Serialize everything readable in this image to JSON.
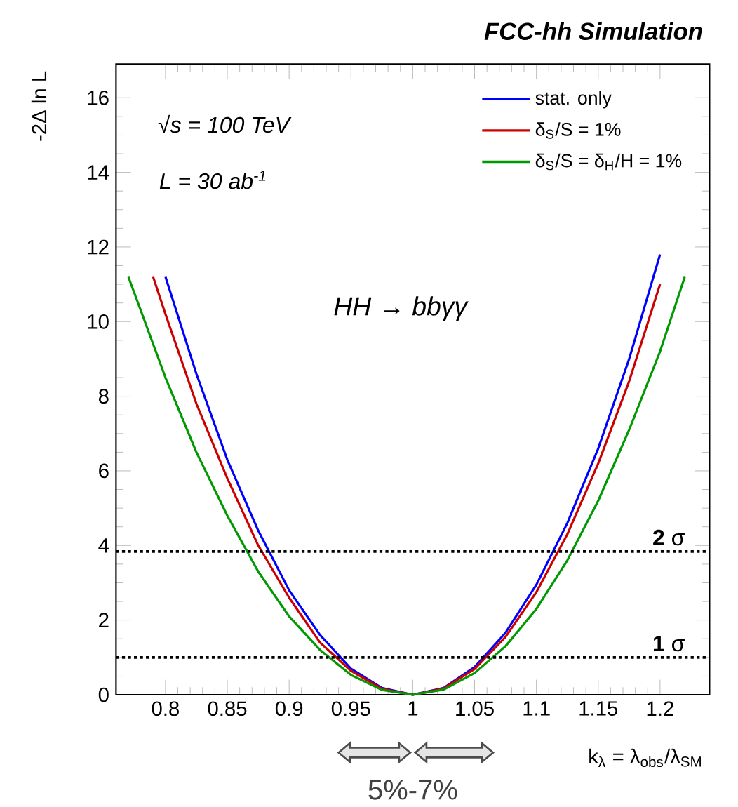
{
  "chart_data": {
    "type": "line",
    "title": "FCC-hh Simulation",
    "xlabel": "k$_{λ}$ = λ$_{obs}$/λ$_{SM}$",
    "ylabel": "-2Δ ln L",
    "xlim": [
      0.76,
      1.24
    ],
    "ylim": [
      0,
      16.9
    ],
    "xticks": [
      0.8,
      0.85,
      0.9,
      0.95,
      1,
      1.05,
      1.1,
      1.15,
      1.2
    ],
    "yticks": [
      0,
      2,
      4,
      6,
      8,
      10,
      12,
      14,
      16
    ],
    "legend": "top right",
    "line_style": "solid",
    "series": [
      {
        "name": "stat. only",
        "color": "#0000ff",
        "x": [
          0.8,
          0.825,
          0.85,
          0.875,
          0.9,
          0.925,
          0.95,
          0.975,
          1.0,
          1.025,
          1.05,
          1.075,
          1.1,
          1.125,
          1.15,
          1.175,
          1.2
        ],
        "values": [
          11.2,
          8.6,
          6.3,
          4.4,
          2.8,
          1.6,
          0.7,
          0.18,
          0,
          0.18,
          0.74,
          1.66,
          2.95,
          4.6,
          6.6,
          9.0,
          11.8
        ]
      },
      {
        "name": "δ$_{S}$/S = 1%",
        "color": "#cc0000",
        "x": [
          0.79,
          0.8,
          0.825,
          0.85,
          0.875,
          0.9,
          0.925,
          0.95,
          0.975,
          1.0,
          1.025,
          1.05,
          1.075,
          1.1,
          1.125,
          1.15,
          1.175,
          1.2
        ],
        "values": [
          11.2,
          10.2,
          7.8,
          5.8,
          4.0,
          2.6,
          1.4,
          0.64,
          0.16,
          0,
          0.17,
          0.69,
          1.55,
          2.75,
          4.3,
          6.2,
          8.4,
          11.0
        ]
      },
      {
        "name": "δ$_{S}$/S = δ$_{H}$/H = 1%",
        "color": "#009900",
        "x": [
          0.77,
          0.8,
          0.825,
          0.85,
          0.875,
          0.9,
          0.925,
          0.95,
          0.975,
          1.0,
          1.025,
          1.05,
          1.075,
          1.1,
          1.125,
          1.15,
          1.175,
          1.2,
          1.22
        ],
        "values": [
          11.2,
          8.5,
          6.5,
          4.8,
          3.3,
          2.1,
          1.2,
          0.53,
          0.13,
          0,
          0.14,
          0.58,
          1.3,
          2.3,
          3.6,
          5.2,
          7.1,
          9.2,
          11.2
        ]
      }
    ],
    "ref_lines": [
      {
        "axis": "y",
        "value": 3.84,
        "label": "**2** σ",
        "color": "#000000",
        "line_style": "dotted"
      },
      {
        "axis": "y",
        "value": 1,
        "label": "**1** σ",
        "color": "#000000",
        "line_style": "dotted"
      }
    ],
    "annotations": [
      "√s = 100 TeV",
      "L = 30 ab$^{-1}$",
      "HH → bbγγ",
      "5%-7%"
    ]
  }
}
